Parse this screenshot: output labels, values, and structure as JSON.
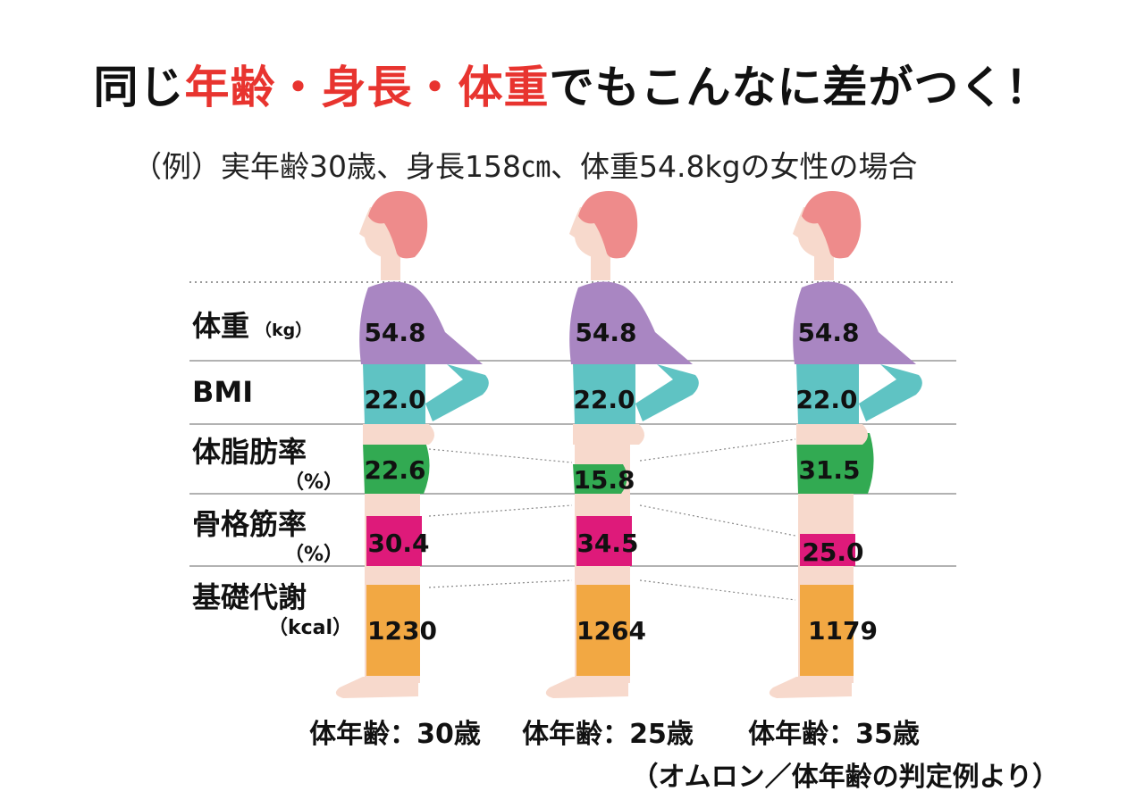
{
  "title": {
    "part1": "同じ",
    "part2": "年齢・身長・体重",
    "part3": "でもこんなに差がつく！"
  },
  "subtitle": "（例）実年齢30歳、身長158㎝、体重54.8kgの女性の場合",
  "colors": {
    "weight": "#a986c2",
    "bmi": "#5fc3c3",
    "bodyfat": "#32aa52",
    "muscle": "#de1a7a",
    "metabolism": "#f2a843",
    "skin": "#f7d9cc",
    "hair": "#ee8b8b"
  },
  "rows": [
    {
      "label": "体重",
      "unit": "（kg）"
    },
    {
      "label": "BMI",
      "unit": ""
    },
    {
      "label": "体脂肪率",
      "unit": "（%）"
    },
    {
      "label": "骨格筋率",
      "unit": "（%）"
    },
    {
      "label": "基礎代謝",
      "unit": "（kcal）"
    }
  ],
  "figures": [
    {
      "weight": "54.8",
      "bmi": "22.0",
      "bodyfat": "22.6",
      "muscle": "30.4",
      "metabolism": "1230",
      "body_age": "体年齢：30歳"
    },
    {
      "weight": "54.8",
      "bmi": "22.0",
      "bodyfat": "15.8",
      "muscle": "34.5",
      "metabolism": "1264",
      "body_age": "体年齢：25歳"
    },
    {
      "weight": "54.8",
      "bmi": "22.0",
      "bodyfat": "31.5",
      "muscle": "25.0",
      "metabolism": "1179",
      "body_age": "体年齢：35歳"
    }
  ],
  "chart_data": {
    "type": "table",
    "title": "同じ年齢・身長・体重でもこんなに差がつく！",
    "categories": [
      "体年齢：30歳",
      "体年齢：25歳",
      "体年齢：35歳"
    ],
    "series": [
      {
        "name": "体重（kg）",
        "values": [
          54.8,
          54.8,
          54.8
        ]
      },
      {
        "name": "BMI",
        "values": [
          22.0,
          22.0,
          22.0
        ]
      },
      {
        "name": "体脂肪率（%）",
        "values": [
          22.6,
          15.8,
          31.5
        ]
      },
      {
        "name": "骨格筋率（%）",
        "values": [
          30.4,
          34.5,
          25.0
        ]
      },
      {
        "name": "基礎代謝（kcal）",
        "values": [
          1230,
          1264,
          1179
        ]
      }
    ]
  },
  "source": "（オムロン／体年齢の判定例より）"
}
